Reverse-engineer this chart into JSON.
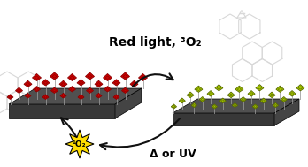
{
  "bg_color": "#ffffff",
  "top_label": "Red light, ³O₂",
  "bottom_label": "Δ or UV",
  "singlet_o2_label": "¹O₂",
  "red_molecule_color": "#cc0000",
  "red_molecule_edge": "#880000",
  "green_molecule_color": "#aacc00",
  "green_molecule_edge": "#556600",
  "stem_color": "#999999",
  "surf_top_color": "#505050",
  "surf_front_color": "#383838",
  "surf_right_color": "#444444",
  "star_color": "#ffdd00",
  "star_outline": "#000000",
  "arrow_color": "#111111",
  "chem_color": "#d8d8d8",
  "font_size_top": 10,
  "font_size_bot": 9,
  "font_size_star": 6.5
}
